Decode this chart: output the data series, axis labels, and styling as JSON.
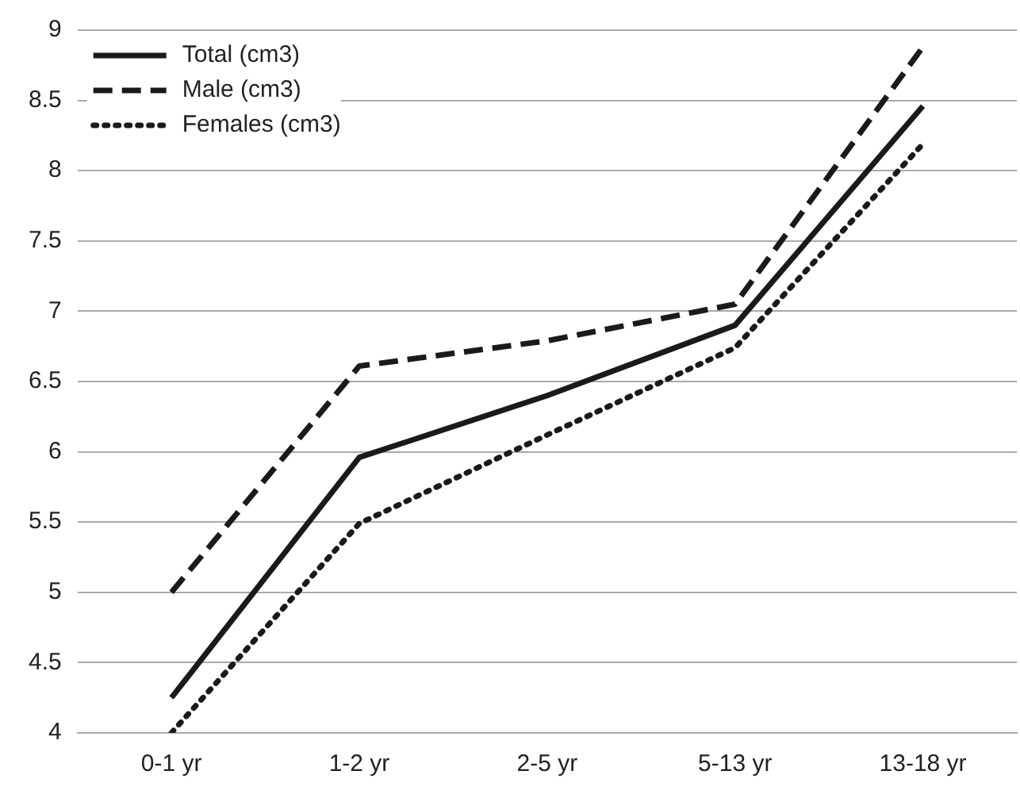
{
  "chart_data": {
    "type": "line",
    "categories": [
      "0-1 yr",
      "1-2 yr",
      "2-5 yr",
      "5-13 yr",
      "13-18 yr"
    ],
    "series": [
      {
        "name": "Total (cm3)",
        "color": "#1a1a1a",
        "line_style": "solid",
        "values": [
          4.25,
          5.96,
          6.4,
          6.9,
          8.46
        ]
      },
      {
        "name": "Male (cm3)",
        "color": "#1a1a1a",
        "line_style": "dashed",
        "values": [
          5.0,
          6.61,
          6.79,
          7.05,
          8.88
        ]
      },
      {
        "name": "Females (cm3)",
        "color": "#1a1a1a",
        "line_style": "dotted",
        "values": [
          4.0,
          5.49,
          6.12,
          6.74,
          8.19
        ]
      }
    ],
    "ylim": [
      4,
      9
    ],
    "yticks": [
      4,
      4.5,
      5,
      5.5,
      6,
      6.5,
      7,
      7.5,
      8,
      8.5,
      9
    ],
    "grid": "y",
    "legend": "top left",
    "marker": "none"
  }
}
